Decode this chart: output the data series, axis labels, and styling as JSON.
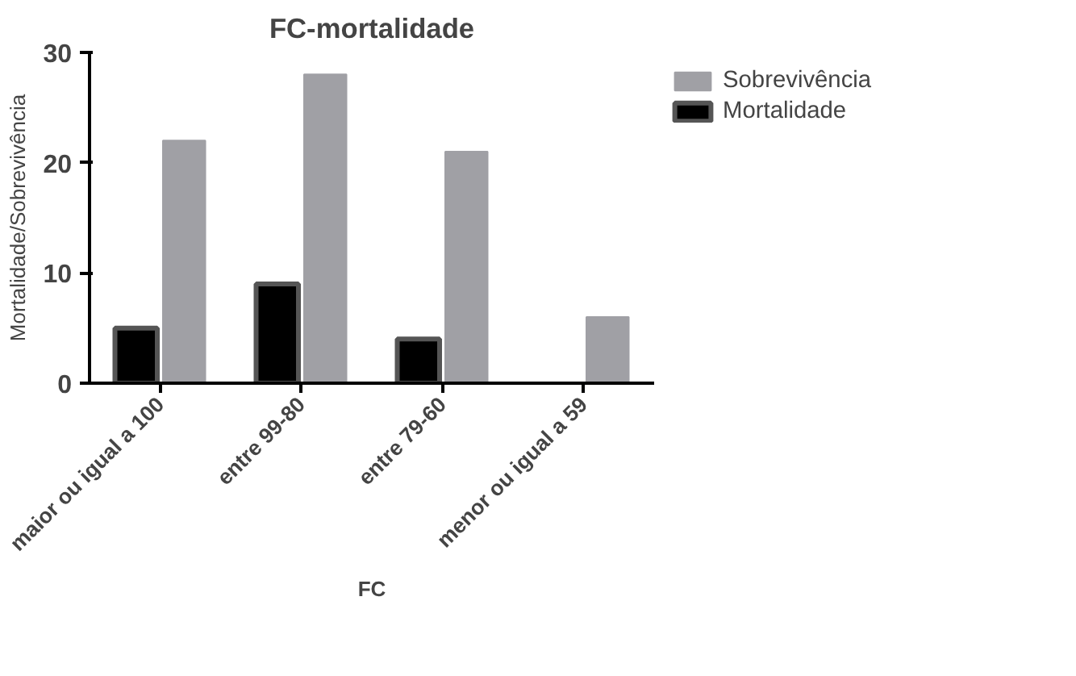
{
  "chart_data": {
    "type": "bar",
    "title": "FC-mortalidade",
    "xlabel": "FC",
    "ylabel": "Mortalidade/Sobrevivência",
    "categories": [
      "maior ou igual a 100",
      "entre 99-80",
      "entre 79-60",
      "menor ou igual a 59"
    ],
    "series": [
      {
        "name": "Mortalidade",
        "color": "#000000",
        "values": [
          5,
          9,
          4,
          0
        ]
      },
      {
        "name": "Sobrevivência",
        "color": "#a0a0a5",
        "values": [
          22,
          28,
          21,
          6
        ]
      }
    ],
    "ylim": [
      0,
      30
    ],
    "yticks": [
      0,
      10,
      20,
      30
    ],
    "legend": "top right"
  }
}
